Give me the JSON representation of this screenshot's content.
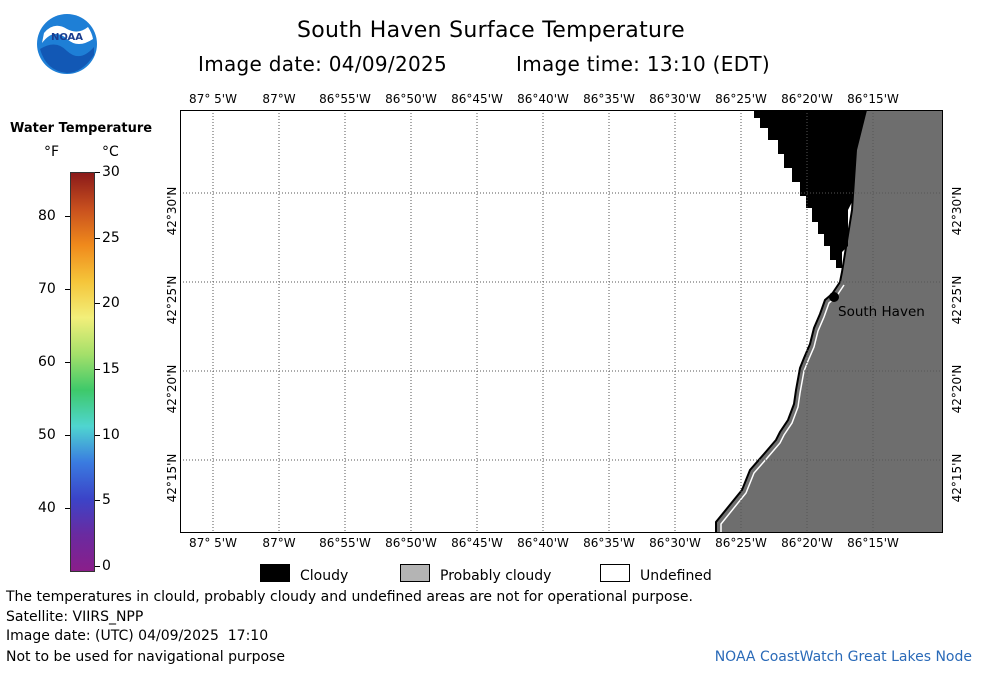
{
  "header": {
    "title": "South Haven Surface Temperature",
    "image_date": "Image date: 04/09/2025",
    "image_time": "Image time: 13:10 (EDT)"
  },
  "logo": {
    "text": "NOAA"
  },
  "colorbar": {
    "title": "Water Temperature",
    "unit_f": "°F",
    "unit_c": "°C",
    "f_ticks": [
      "80",
      "70",
      "60",
      "50",
      "40"
    ],
    "c_ticks": [
      "30",
      "25",
      "20",
      "15",
      "10",
      "5",
      "0"
    ],
    "gradient": [
      "#8b1a1a",
      "#c8501e",
      "#f08a1c",
      "#f5c53a",
      "#f2ef7a",
      "#a5e06a",
      "#3ec96a",
      "#4fd5d0",
      "#3a7be0",
      "#3b44c8",
      "#6a2aa0",
      "#8a1e8a"
    ]
  },
  "map": {
    "lon_labels": [
      "87° 5'W",
      "87°W",
      "86°55'W",
      "86°50'W",
      "86°45'W",
      "86°40'W",
      "86°35'W",
      "86°30'W",
      "86°25'W",
      "86°20'W",
      "86°15'W"
    ],
    "lat_labels": [
      "42°30'N",
      "42°25'N",
      "42°20'N",
      "42°15'N"
    ],
    "place_label": "South Haven",
    "land_color": "#6e6e6e",
    "cloud_color": "#000000",
    "water_color": "#ffffff"
  },
  "legend": {
    "cloudy": "Cloudy",
    "probably_cloudy": "Probably cloudy",
    "undefined": "Undefined"
  },
  "footer": {
    "disclaimer": "The temperatures in clould, probably cloudy and undefined areas are not for operational purpose.",
    "satellite": "Satellite: VIIRS_NPP",
    "utc_date": "Image date: (UTC) 04/09/2025  17:10",
    "navigation": "Not to be used for navigational purpose",
    "credit": "NOAA CoastWatch Great Lakes Node"
  }
}
